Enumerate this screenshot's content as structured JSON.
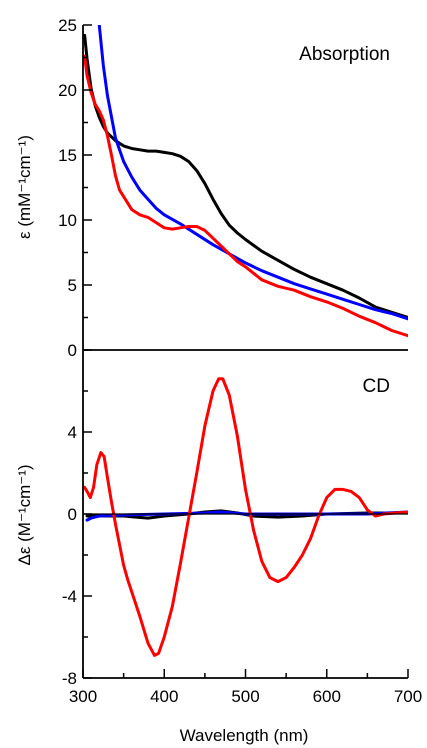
{
  "chart_data": [
    {
      "type": "line",
      "title": "Absorption",
      "xlabel": "",
      "ylabel": "ε (mM⁻¹cm⁻¹)",
      "xlim": [
        300,
        700
      ],
      "ylim": [
        0,
        25
      ],
      "yticks": [
        0,
        5,
        10,
        15,
        20,
        25
      ],
      "grid": false,
      "series": [
        {
          "color": "#000000",
          "points": [
            [
              302,
              24.2
            ],
            [
              305,
              22.4
            ],
            [
              310,
              20.1
            ],
            [
              315,
              18.8
            ],
            [
              320,
              17.9
            ],
            [
              325,
              17.2
            ],
            [
              330,
              16.7
            ],
            [
              340,
              16.1
            ],
            [
              350,
              15.7
            ],
            [
              360,
              15.5
            ],
            [
              370,
              15.4
            ],
            [
              380,
              15.3
            ],
            [
              390,
              15.3
            ],
            [
              400,
              15.2
            ],
            [
              410,
              15.1
            ],
            [
              420,
              14.9
            ],
            [
              430,
              14.5
            ],
            [
              440,
              13.8
            ],
            [
              450,
              12.8
            ],
            [
              460,
              11.6
            ],
            [
              470,
              10.5
            ],
            [
              480,
              9.6
            ],
            [
              490,
              9.0
            ],
            [
              500,
              8.5
            ],
            [
              520,
              7.6
            ],
            [
              540,
              6.9
            ],
            [
              560,
              6.2
            ],
            [
              580,
              5.6
            ],
            [
              600,
              5.1
            ],
            [
              620,
              4.6
            ],
            [
              640,
              4.0
            ],
            [
              660,
              3.3
            ],
            [
              680,
              2.9
            ],
            [
              700,
              2.5
            ]
          ]
        },
        {
          "color": "#0000ff",
          "points": [
            [
              320,
              25
            ],
            [
              325,
              21.9
            ],
            [
              330,
              19.6
            ],
            [
              340,
              16.3
            ],
            [
              350,
              14.5
            ],
            [
              360,
              13.3
            ],
            [
              370,
              12.3
            ],
            [
              380,
              11.6
            ],
            [
              390,
              10.9
            ],
            [
              400,
              10.4
            ],
            [
              420,
              9.7
            ],
            [
              440,
              8.9
            ],
            [
              460,
              8.1
            ],
            [
              480,
              7.4
            ],
            [
              500,
              6.7
            ],
            [
              520,
              6.1
            ],
            [
              540,
              5.6
            ],
            [
              560,
              5.1
            ],
            [
              580,
              4.7
            ],
            [
              600,
              4.3
            ],
            [
              620,
              3.9
            ],
            [
              640,
              3.5
            ],
            [
              660,
              3.1
            ],
            [
              680,
              2.8
            ],
            [
              700,
              2.4
            ]
          ]
        },
        {
          "color": "#ff0000",
          "points": [
            [
              302,
              22.6
            ],
            [
              305,
              21.1
            ],
            [
              310,
              19.8
            ],
            [
              315,
              18.9
            ],
            [
              320,
              18.4
            ],
            [
              325,
              17.7
            ],
            [
              330,
              16.5
            ],
            [
              335,
              15.0
            ],
            [
              340,
              13.4
            ],
            [
              345,
              12.3
            ],
            [
              350,
              11.8
            ],
            [
              355,
              11.3
            ],
            [
              360,
              10.8
            ],
            [
              370,
              10.4
            ],
            [
              380,
              10.2
            ],
            [
              390,
              9.8
            ],
            [
              400,
              9.4
            ],
            [
              410,
              9.3
            ],
            [
              420,
              9.4
            ],
            [
              430,
              9.5
            ],
            [
              440,
              9.5
            ],
            [
              450,
              9.2
            ],
            [
              460,
              8.6
            ],
            [
              470,
              8.0
            ],
            [
              480,
              7.4
            ],
            [
              490,
              6.8
            ],
            [
              500,
              6.4
            ],
            [
              510,
              5.9
            ],
            [
              520,
              5.4
            ],
            [
              540,
              4.9
            ],
            [
              560,
              4.6
            ],
            [
              580,
              4.1
            ],
            [
              600,
              3.7
            ],
            [
              620,
              3.2
            ],
            [
              640,
              2.6
            ],
            [
              660,
              2.1
            ],
            [
              680,
              1.5
            ],
            [
              700,
              1.1
            ]
          ]
        }
      ]
    },
    {
      "type": "line",
      "title": "CD",
      "xlabel": "Wavelength (nm)",
      "ylabel": "Δε (M⁻¹cm⁻¹)",
      "xlim": [
        300,
        700
      ],
      "ylim": [
        -8,
        8
      ],
      "xticks": [
        300,
        400,
        500,
        600,
        700
      ],
      "yticks": [
        -8,
        -4,
        0,
        4
      ],
      "grid": false,
      "series": [
        {
          "color": "#000000",
          "points": [
            [
              305,
              -0.1
            ],
            [
              350,
              -0.1
            ],
            [
              380,
              -0.2
            ],
            [
              400,
              -0.1
            ],
            [
              430,
              0.0
            ],
            [
              450,
              0.1
            ],
            [
              470,
              0.15
            ],
            [
              490,
              0.05
            ],
            [
              510,
              -0.1
            ],
            [
              540,
              -0.15
            ],
            [
              570,
              -0.1
            ],
            [
              600,
              0.0
            ],
            [
              650,
              0.05
            ],
            [
              700,
              0.05
            ]
          ]
        },
        {
          "color": "#0000ff",
          "points": [
            [
              305,
              -0.3
            ],
            [
              310,
              -0.2
            ],
            [
              320,
              -0.1
            ],
            [
              350,
              -0.05
            ],
            [
              400,
              0.0
            ],
            [
              450,
              0.05
            ],
            [
              470,
              0.1
            ],
            [
              500,
              0.0
            ],
            [
              550,
              0.0
            ],
            [
              600,
              0.0
            ],
            [
              650,
              0.0
            ],
            [
              700,
              0.1
            ]
          ]
        },
        {
          "color": "#ff0000",
          "points": [
            [
              302,
              1.3
            ],
            [
              305,
              1.1
            ],
            [
              309,
              0.8
            ],
            [
              313,
              1.3
            ],
            [
              317,
              2.4
            ],
            [
              322,
              3.0
            ],
            [
              326,
              2.8
            ],
            [
              330,
              1.8
            ],
            [
              335,
              0.6
            ],
            [
              340,
              -0.5
            ],
            [
              345,
              -1.5
            ],
            [
              350,
              -2.5
            ],
            [
              355,
              -3.2
            ],
            [
              360,
              -3.8
            ],
            [
              370,
              -5.0
            ],
            [
              380,
              -6.3
            ],
            [
              388,
              -6.9
            ],
            [
              393,
              -6.8
            ],
            [
              400,
              -6.0
            ],
            [
              410,
              -4.5
            ],
            [
              420,
              -2.4
            ],
            [
              430,
              -0.2
            ],
            [
              440,
              2.0
            ],
            [
              450,
              4.3
            ],
            [
              460,
              6.0
            ],
            [
              467,
              6.6
            ],
            [
              472,
              6.6
            ],
            [
              480,
              5.8
            ],
            [
              490,
              3.8
            ],
            [
              500,
              1.2
            ],
            [
              510,
              -0.8
            ],
            [
              520,
              -2.3
            ],
            [
              530,
              -3.1
            ],
            [
              540,
              -3.3
            ],
            [
              550,
              -3.1
            ],
            [
              560,
              -2.6
            ],
            [
              570,
              -2.0
            ],
            [
              580,
              -1.2
            ],
            [
              590,
              -0.1
            ],
            [
              600,
              0.8
            ],
            [
              610,
              1.2
            ],
            [
              620,
              1.2
            ],
            [
              630,
              1.1
            ],
            [
              640,
              0.8
            ],
            [
              650,
              0.2
            ],
            [
              660,
              -0.1
            ],
            [
              670,
              0.0
            ],
            [
              700,
              0.1
            ]
          ]
        }
      ]
    }
  ]
}
